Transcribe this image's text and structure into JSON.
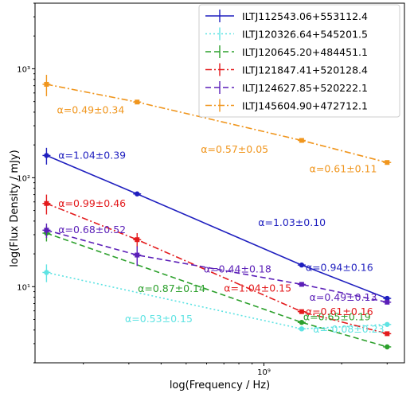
{
  "chart_data": {
    "type": "line",
    "title": "",
    "xlabel": "log(Frequency / Hz)",
    "ylabel": "log(Flux Density / mJy)",
    "x_scale": "log",
    "y_scale": "log",
    "xlim": [
      130000000,
      3500000000
    ],
    "ylim": [
      2,
      4000
    ],
    "y_ticks": [
      {
        "value": 10,
        "label": "10¹"
      },
      {
        "value": 100,
        "label": "10²"
      },
      {
        "value": 1000,
        "label": "10³"
      }
    ],
    "x_ticks": [
      {
        "value": 1000000000,
        "label": "10⁹"
      }
    ],
    "legend_position": "top-right",
    "series": [
      {
        "name": "ILTJ112543.06+553112.4",
        "color": "#1f1fbf",
        "linestyle": "solid",
        "marker": "circle",
        "points": [
          {
            "x": 144000000,
            "y": 160,
            "err": 28
          },
          {
            "x": 323000000,
            "y": 71
          },
          {
            "x": 1400000000,
            "y": 15.8
          },
          {
            "x": 3000000000,
            "y": 7.8
          }
        ],
        "annotations": [
          {
            "text": "α=1.04±0.39",
            "x": 160000000,
            "y": 150
          },
          {
            "text": "α=1.03±0.10",
            "x": 950000000,
            "y": 36
          },
          {
            "text": "α=0.94±0.16",
            "x": 1450000000,
            "y": 14
          }
        ]
      },
      {
        "name": "ILTJ120326.64+545201.5",
        "color": "#5fe3e3",
        "linestyle": "dotted",
        "marker": "circle",
        "points": [
          {
            "x": 144000000,
            "y": 13.5,
            "err": 2.5
          },
          {
            "x": 1400000000,
            "y": 4.1
          },
          {
            "x": 3000000000,
            "y": 4.5
          }
        ],
        "annotations": [
          {
            "text": "α=0.53±0.15",
            "x": 290000000,
            "y": 4.7
          },
          {
            "text": "α=-0.08±0.23",
            "x": 1550000000,
            "y": 3.8
          }
        ]
      },
      {
        "name": "ILTJ120645.20+484451.1",
        "color": "#2ca02c",
        "linestyle": "dashed",
        "marker": "circle",
        "points": [
          {
            "x": 144000000,
            "y": 31,
            "err": 5
          },
          {
            "x": 1400000000,
            "y": 4.7
          },
          {
            "x": 3000000000,
            "y": 2.8
          }
        ],
        "annotations": [
          {
            "text": "α=0.87±0.14",
            "x": 325000000,
            "y": 8.9
          },
          {
            "text": "α=0.65±0.19",
            "x": 1420000000,
            "y": 4.9
          }
        ]
      },
      {
        "name": "ILTJ121847.41+520128.4",
        "color": "#e31a1c",
        "linestyle": "dashdot",
        "marker": "square",
        "points": [
          {
            "x": 144000000,
            "y": 58,
            "err": 12
          },
          {
            "x": 323000000,
            "y": 27,
            "err": 4
          },
          {
            "x": 1400000000,
            "y": 5.9
          },
          {
            "x": 3000000000,
            "y": 3.7
          }
        ],
        "annotations": [
          {
            "text": "α=0.99±0.46",
            "x": 160000000,
            "y": 54
          },
          {
            "text": "α=1.04±0.15",
            "x": 700000000,
            "y": 9.0
          },
          {
            "text": "α=0.61±0.16",
            "x": 1450000000,
            "y": 5.5
          }
        ]
      },
      {
        "name": "ILTJ124627.85+520222.1",
        "color": "#5b1fb8",
        "linestyle": "dashed",
        "marker": "square",
        "points": [
          {
            "x": 144000000,
            "y": 33,
            "err": 5
          },
          {
            "x": 323000000,
            "y": 19.5,
            "err": 4
          },
          {
            "x": 1400000000,
            "y": 10.5
          },
          {
            "x": 3000000000,
            "y": 7.2
          }
        ],
        "annotations": [
          {
            "text": "α=0.68±0.52",
            "x": 160000000,
            "y": 31
          },
          {
            "text": "α=0.44±0.18",
            "x": 585000000,
            "y": 13.5
          },
          {
            "text": "α=0.49±0.13",
            "x": 1500000000,
            "y": 7.4
          }
        ]
      },
      {
        "name": "ILTJ145604.90+472712.1",
        "color": "#f0961e",
        "linestyle": "dashdot",
        "marker": "square",
        "points": [
          {
            "x": 144000000,
            "y": 720,
            "err": 160
          },
          {
            "x": 323000000,
            "y": 495
          },
          {
            "x": 1400000000,
            "y": 220
          },
          {
            "x": 3000000000,
            "y": 138
          }
        ],
        "annotations": [
          {
            "text": "α=0.49±0.34",
            "x": 158000000,
            "y": 390
          },
          {
            "text": "α=0.57±0.05",
            "x": 570000000,
            "y": 170
          },
          {
            "text": "α=0.61±0.11",
            "x": 1500000000,
            "y": 112
          }
        ]
      }
    ]
  }
}
